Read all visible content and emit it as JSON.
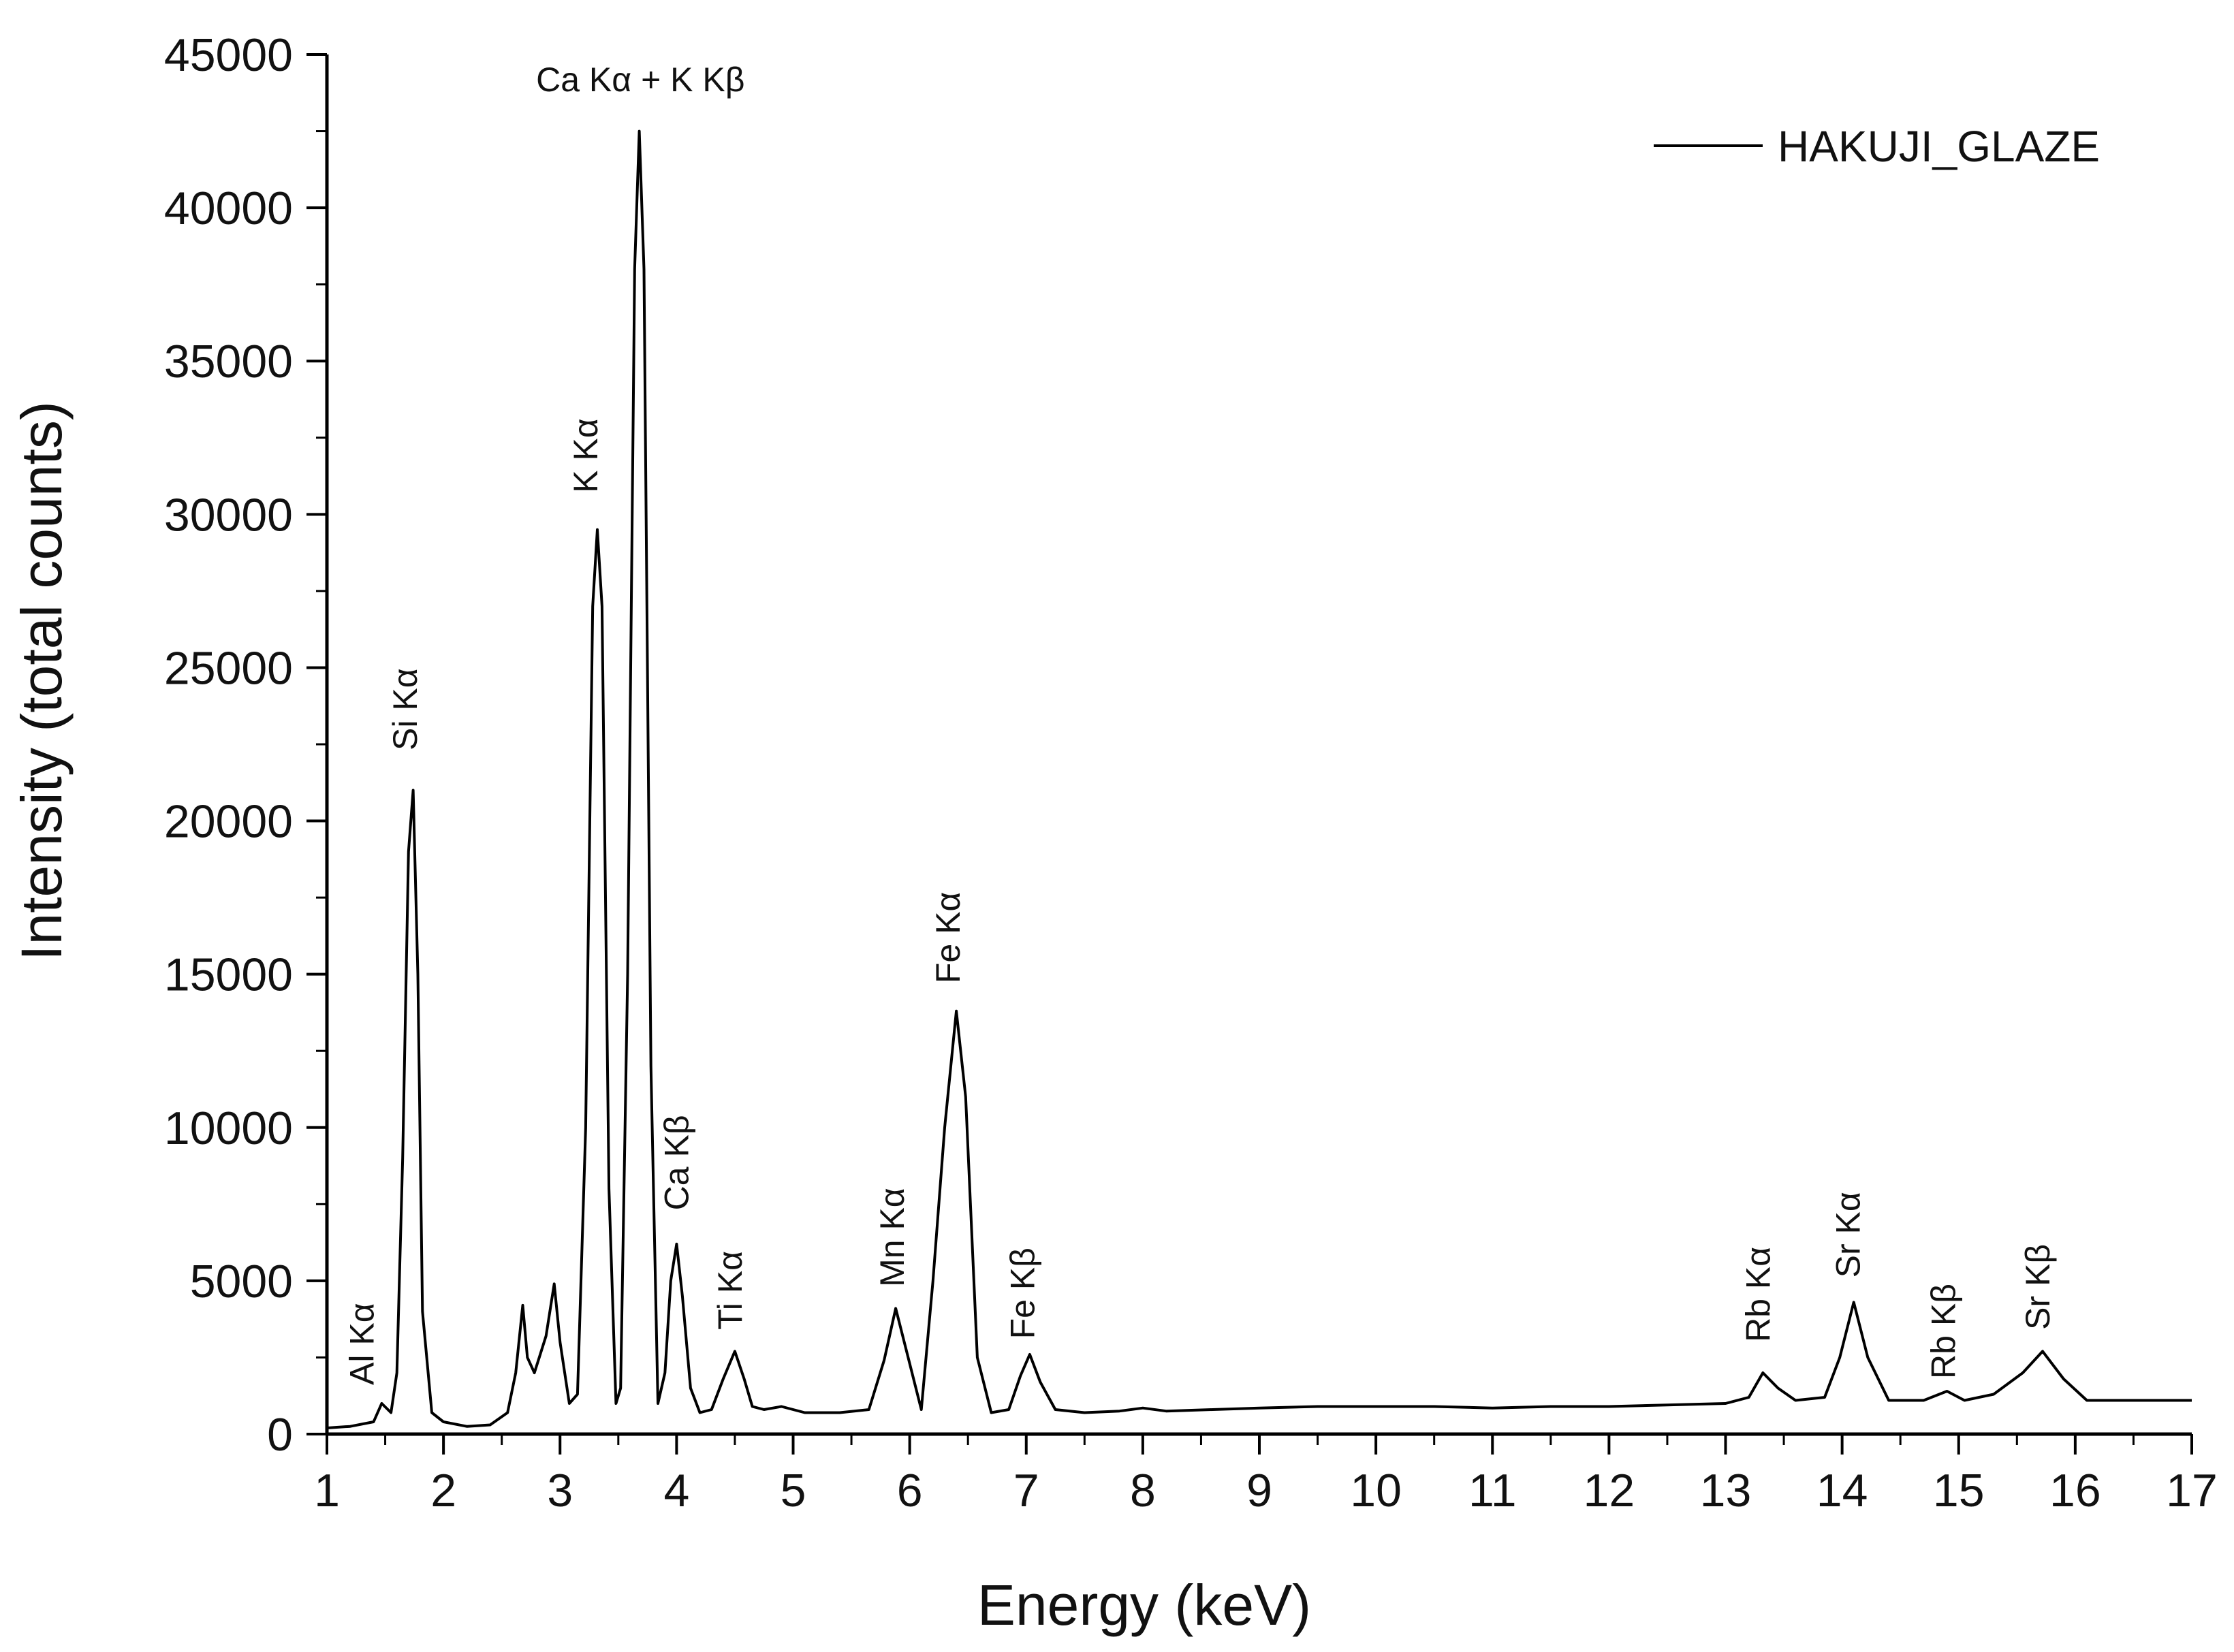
{
  "chart_data": {
    "type": "line",
    "xlabel": "Energy (keV)",
    "ylabel": "Intensity (total counts)",
    "xlim": [
      1,
      17
    ],
    "ylim": [
      0,
      45000
    ],
    "xticks": [
      "1",
      "2",
      "3",
      "4",
      "5",
      "6",
      "7",
      "8",
      "9",
      "10",
      "11",
      "12",
      "13",
      "14",
      "15",
      "16",
      "17"
    ],
    "yticks": [
      "0",
      "5000",
      "10000",
      "15000",
      "20000",
      "25000",
      "30000",
      "35000",
      "40000",
      "45000"
    ],
    "legend": "top-right",
    "series": [
      {
        "name": "HAKUJI_GLAZE",
        "color": "#000000",
        "x": [
          1.0,
          1.2,
          1.4,
          1.47,
          1.55,
          1.6,
          1.65,
          1.7,
          1.74,
          1.78,
          1.82,
          1.9,
          2.0,
          2.2,
          2.4,
          2.55,
          2.62,
          2.68,
          2.72,
          2.78,
          2.83,
          2.88,
          2.95,
          3.0,
          3.08,
          3.15,
          3.22,
          3.28,
          3.32,
          3.36,
          3.42,
          3.48,
          3.52,
          3.58,
          3.64,
          3.68,
          3.72,
          3.78,
          3.84,
          3.9,
          3.95,
          4.0,
          4.05,
          4.12,
          4.2,
          4.3,
          4.4,
          4.5,
          4.58,
          4.65,
          4.75,
          4.9,
          5.1,
          5.4,
          5.65,
          5.78,
          5.88,
          5.98,
          6.1,
          6.2,
          6.3,
          6.4,
          6.48,
          6.58,
          6.7,
          6.85,
          6.95,
          7.03,
          7.12,
          7.25,
          7.5,
          7.8,
          8.0,
          8.2,
          8.6,
          9.0,
          9.5,
          10.0,
          10.5,
          11.0,
          11.5,
          12.0,
          12.5,
          13.0,
          13.2,
          13.32,
          13.45,
          13.6,
          13.85,
          13.98,
          14.1,
          14.22,
          14.4,
          14.7,
          14.9,
          15.05,
          15.3,
          15.55,
          15.72,
          15.9,
          16.1,
          16.5,
          17.0
        ],
        "y": [
          200,
          250,
          400,
          1000,
          700,
          2000,
          9000,
          19000,
          21000,
          15000,
          4000,
          700,
          400,
          250,
          300,
          700,
          2000,
          4200,
          2500,
          2000,
          2600,
          3200,
          4900,
          3000,
          1000,
          1300,
          10000,
          27000,
          29500,
          27000,
          8000,
          1000,
          1500,
          15000,
          38000,
          42500,
          38000,
          12000,
          1000,
          2000,
          5000,
          6200,
          4500,
          1500,
          700,
          800,
          1800,
          2700,
          1800,
          900,
          800,
          900,
          700,
          700,
          800,
          2400,
          4100,
          2600,
          800,
          5000,
          10000,
          13800,
          11000,
          2500,
          700,
          800,
          1900,
          2600,
          1700,
          800,
          700,
          750,
          850,
          750,
          800,
          850,
          900,
          900,
          900,
          850,
          900,
          900,
          950,
          1000,
          1200,
          2000,
          1500,
          1100,
          1200,
          2500,
          4300,
          2500,
          1100,
          1100,
          1400,
          1100,
          1300,
          2000,
          2700,
          1800,
          1100,
          1100,
          1100
        ]
      }
    ],
    "annotations": [
      {
        "text": "Al Kα",
        "x": 1.4,
        "y": 1600,
        "rotate": true
      },
      {
        "text": "Si Kα",
        "x": 1.77,
        "y": 22300,
        "rotate": true
      },
      {
        "text": "K Kα",
        "x": 3.32,
        "y": 30700,
        "rotate": true
      },
      {
        "text": "Ca Kα + K Kβ",
        "x": 3.69,
        "y": 43800,
        "rotate": false
      },
      {
        "text": "Ca Kβ",
        "x": 4.1,
        "y": 7300,
        "rotate": true
      },
      {
        "text": "Ti Kα",
        "x": 4.56,
        "y": 3400,
        "rotate": true
      },
      {
        "text": "Mn Kα",
        "x": 5.95,
        "y": 4800,
        "rotate": true
      },
      {
        "text": "Fe Kα",
        "x": 6.43,
        "y": 14700,
        "rotate": true
      },
      {
        "text": "Fe Kβ",
        "x": 7.07,
        "y": 3100,
        "rotate": true
      },
      {
        "text": "Rb Kα",
        "x": 13.38,
        "y": 3000,
        "rotate": true
      },
      {
        "text": "Sr Kα",
        "x": 14.15,
        "y": 5100,
        "rotate": true
      },
      {
        "text": "Rb Kβ",
        "x": 14.97,
        "y": 1800,
        "rotate": true
      },
      {
        "text": "Sr Kβ",
        "x": 15.78,
        "y": 3400,
        "rotate": true
      }
    ]
  }
}
